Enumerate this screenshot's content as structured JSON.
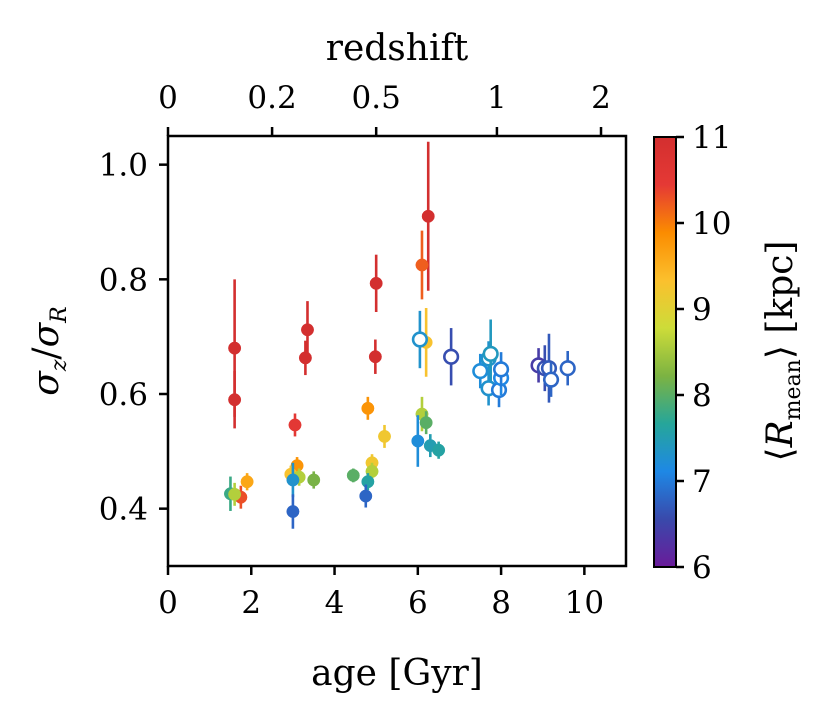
{
  "chart_data": {
    "type": "scatter",
    "xlabel": "age [Gyr]",
    "ylabel": "σz/σR",
    "xlim": [
      0,
      11
    ],
    "ylim": [
      0.3,
      1.05
    ],
    "xticks": [
      0,
      2,
      4,
      6,
      8,
      10
    ],
    "xtick_labels": [
      "0",
      "2",
      "4",
      "6",
      "8",
      "10"
    ],
    "yticks": [
      0.4,
      0.6,
      0.8,
      1.0
    ],
    "ytick_labels": [
      "0.4",
      "0.6",
      "0.8",
      "1.0"
    ],
    "top_axis": {
      "label": "redshift",
      "ticks": [
        {
          "age": 0.0,
          "label": "0"
        },
        {
          "age": 2.5,
          "label": "0.2"
        },
        {
          "age": 5.0,
          "label": "0.5"
        },
        {
          "age": 7.9,
          "label": "1"
        },
        {
          "age": 10.4,
          "label": "2"
        }
      ]
    },
    "colorbar": {
      "label": "⟨Rmean⟩ [kpc]",
      "min": 6,
      "max": 11,
      "ticks": [
        6,
        7,
        8,
        9,
        10,
        11
      ],
      "tick_labels": [
        "6",
        "7",
        "8",
        "9",
        "10",
        "11"
      ],
      "colormap": [
        "#6a1b9a",
        "#3949ab",
        "#1e88e5",
        "#26a69a",
        "#7cb342",
        "#cddc39",
        "#fbc02d",
        "#fb8c00",
        "#e53935",
        "#d32f2f"
      ]
    },
    "series": [
      {
        "name": "filled",
        "marker": "filled",
        "points": [
          {
            "age": 1.6,
            "ratio": 0.68,
            "err": 0.12,
            "R": 11.0
          },
          {
            "age": 1.6,
            "ratio": 0.59,
            "err": 0.05,
            "R": 11.0
          },
          {
            "age": 3.35,
            "ratio": 0.712,
            "err": 0.05,
            "R": 11.0
          },
          {
            "age": 3.3,
            "ratio": 0.663,
            "err": 0.03,
            "R": 11.0
          },
          {
            "age": 5.0,
            "ratio": 0.793,
            "err": 0.05,
            "R": 11.0
          },
          {
            "age": 4.98,
            "ratio": 0.665,
            "err": 0.03,
            "R": 11.0
          },
          {
            "age": 6.25,
            "ratio": 0.91,
            "err": 0.13,
            "R": 11.0
          },
          {
            "age": 6.1,
            "ratio": 0.825,
            "err": 0.06,
            "R": 10.2
          },
          {
            "age": 6.2,
            "ratio": 0.69,
            "err": 0.06,
            "R": 9.3
          },
          {
            "age": 3.05,
            "ratio": 0.546,
            "err": 0.02,
            "R": 10.5
          },
          {
            "age": 4.8,
            "ratio": 0.575,
            "err": 0.02,
            "R": 9.8
          },
          {
            "age": 5.2,
            "ratio": 0.526,
            "err": 0.02,
            "R": 9.2
          },
          {
            "age": 1.9,
            "ratio": 0.447,
            "err": 0.015,
            "R": 9.6
          },
          {
            "age": 1.75,
            "ratio": 0.42,
            "err": 0.02,
            "R": 10.3
          },
          {
            "age": 3.1,
            "ratio": 0.475,
            "err": 0.015,
            "R": 9.8
          },
          {
            "age": 2.95,
            "ratio": 0.46,
            "err": 0.015,
            "R": 9.3
          },
          {
            "age": 3.15,
            "ratio": 0.455,
            "err": 0.015,
            "R": 8.6
          },
          {
            "age": 3.5,
            "ratio": 0.45,
            "err": 0.015,
            "R": 8.2
          },
          {
            "age": 4.45,
            "ratio": 0.458,
            "err": 0.012,
            "R": 8.0
          },
          {
            "age": 4.9,
            "ratio": 0.48,
            "err": 0.015,
            "R": 9.2
          },
          {
            "age": 4.9,
            "ratio": 0.465,
            "err": 0.015,
            "R": 8.6
          },
          {
            "age": 4.8,
            "ratio": 0.447,
            "err": 0.015,
            "R": 7.6
          },
          {
            "age": 4.75,
            "ratio": 0.422,
            "err": 0.02,
            "R": 6.8
          },
          {
            "age": 1.5,
            "ratio": 0.426,
            "err": 0.03,
            "R": 7.8
          },
          {
            "age": 1.6,
            "ratio": 0.425,
            "err": 0.02,
            "R": 8.6
          },
          {
            "age": 3.0,
            "ratio": 0.45,
            "err": 0.03,
            "R": 7.3
          },
          {
            "age": 3.0,
            "ratio": 0.395,
            "err": 0.03,
            "R": 6.8
          },
          {
            "age": 6.1,
            "ratio": 0.565,
            "err": 0.03,
            "R": 8.6
          },
          {
            "age": 6.2,
            "ratio": 0.55,
            "err": 0.02,
            "R": 8.0
          },
          {
            "age": 6.0,
            "ratio": 0.518,
            "err": 0.045,
            "R": 7.2
          },
          {
            "age": 6.3,
            "ratio": 0.51,
            "err": 0.02,
            "R": 7.5
          },
          {
            "age": 6.5,
            "ratio": 0.502,
            "err": 0.015,
            "R": 7.6
          }
        ]
      },
      {
        "name": "open",
        "marker": "open",
        "points": [
          {
            "age": 6.05,
            "ratio": 0.695,
            "err": 0.05,
            "R": 7.3
          },
          {
            "age": 6.8,
            "ratio": 0.665,
            "err": 0.05,
            "R": 6.6
          },
          {
            "age": 7.5,
            "ratio": 0.64,
            "err": 0.03,
            "R": 7.2
          },
          {
            "age": 7.7,
            "ratio": 0.662,
            "err": 0.03,
            "R": 7.3
          },
          {
            "age": 7.75,
            "ratio": 0.67,
            "err": 0.06,
            "R": 7.4
          },
          {
            "age": 7.7,
            "ratio": 0.61,
            "err": 0.03,
            "R": 7.3
          },
          {
            "age": 7.95,
            "ratio": 0.607,
            "err": 0.03,
            "R": 7.0
          },
          {
            "age": 8.0,
            "ratio": 0.628,
            "err": 0.03,
            "R": 7.1
          },
          {
            "age": 8.0,
            "ratio": 0.643,
            "err": 0.03,
            "R": 7.0
          },
          {
            "age": 8.9,
            "ratio": 0.65,
            "err": 0.03,
            "R": 6.4
          },
          {
            "age": 9.05,
            "ratio": 0.645,
            "err": 0.04,
            "R": 6.6
          },
          {
            "age": 9.15,
            "ratio": 0.645,
            "err": 0.06,
            "R": 6.7
          },
          {
            "age": 9.2,
            "ratio": 0.625,
            "err": 0.03,
            "R": 6.8
          },
          {
            "age": 9.6,
            "ratio": 0.645,
            "err": 0.03,
            "R": 6.8
          }
        ]
      }
    ]
  }
}
